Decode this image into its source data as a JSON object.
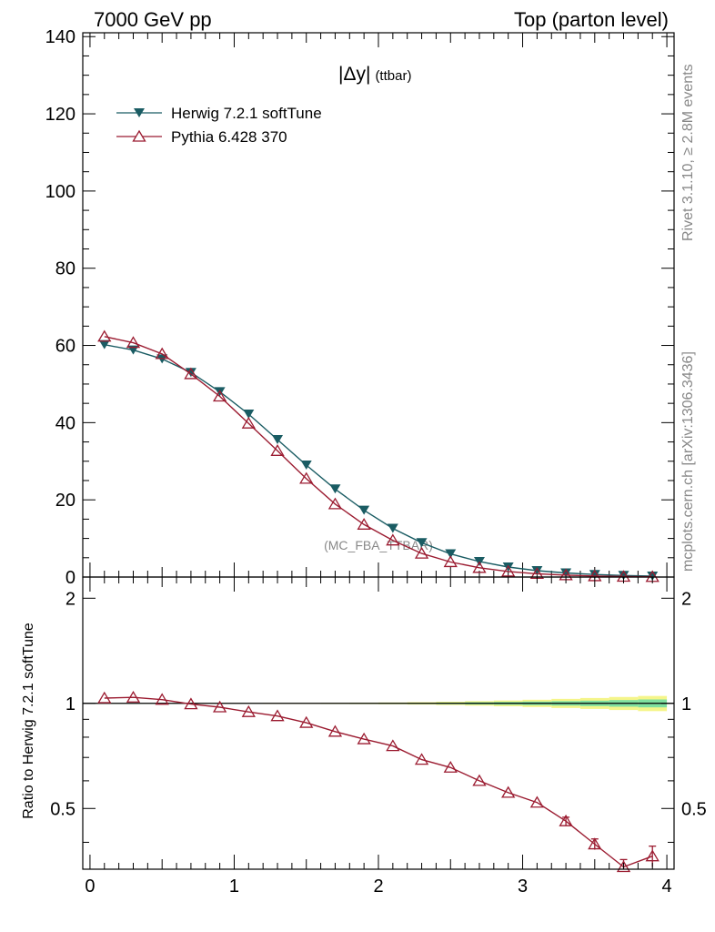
{
  "header": {
    "left": "7000 GeV pp",
    "right": "Top (parton level)"
  },
  "side_labels": {
    "rivet": "Rivet 3.1.10, ≥ 2.8M events",
    "mcplots": "mcplots.cern.ch [arXiv:1306.3436]"
  },
  "chart_data": [
    {
      "type": "line",
      "title": "|Δy| (ttbar)",
      "title_main": "|Δy|",
      "title_sub": "(ttbar)",
      "watermark": "(MC_FBA_TTBAR)",
      "xlabel": "",
      "ylabel": "",
      "xlim": [
        -0.05,
        4.05
      ],
      "ylim": [
        0,
        141
      ],
      "y_ticks": [
        0,
        20,
        40,
        60,
        80,
        100,
        120,
        140
      ],
      "legend_position": "top-left",
      "x": [
        0.1,
        0.3,
        0.5,
        0.7,
        0.9,
        1.1,
        1.3,
        1.5,
        1.7,
        1.9,
        2.1,
        2.3,
        2.5,
        2.7,
        2.9,
        3.1,
        3.3,
        3.5,
        3.7,
        3.9
      ],
      "series": [
        {
          "name": "Herwig 7.2.1 softTune",
          "color": "#1a5c63",
          "marker": "triangle-down-filled",
          "values": [
            60.2,
            58.8,
            56.5,
            53.0,
            48.0,
            42.2,
            35.6,
            29.0,
            22.8,
            17.3,
            12.6,
            8.9,
            6.0,
            4.0,
            2.6,
            1.65,
            1.05,
            0.65,
            0.4,
            0.25
          ]
        },
        {
          "name": "Pythia 6.428 370",
          "color": "#9b1b30",
          "marker": "triangle-up-open",
          "values": [
            62.3,
            60.7,
            57.8,
            52.6,
            46.8,
            39.8,
            32.7,
            25.5,
            18.9,
            13.6,
            9.5,
            6.1,
            3.9,
            2.4,
            1.45,
            0.85,
            0.5,
            0.25,
            0.12,
            0.06
          ]
        }
      ]
    },
    {
      "type": "line",
      "ylabel": "Ratio to Herwig 7.2.1 softTune",
      "ylim": [
        0.335,
        2.3
      ],
      "y_scale": "log",
      "y_ticks": [
        0.5,
        1,
        2
      ],
      "x_ticks": [
        0,
        1,
        2,
        3,
        4
      ],
      "x": [
        0.1,
        0.3,
        0.5,
        0.7,
        0.9,
        1.1,
        1.3,
        1.5,
        1.7,
        1.9,
        2.1,
        2.3,
        2.5,
        2.7,
        2.9,
        3.1,
        3.3,
        3.5,
        3.7,
        3.9
      ],
      "band_yellow_halfwidth": [
        0.001,
        0.001,
        0.001,
        0.002,
        0.002,
        0.002,
        0.003,
        0.003,
        0.004,
        0.005,
        0.006,
        0.008,
        0.011,
        0.015,
        0.019,
        0.024,
        0.03,
        0.036,
        0.043,
        0.05
      ],
      "band_green_halfwidth": [
        0.0005,
        0.0005,
        0.0005,
        0.001,
        0.001,
        0.001,
        0.0015,
        0.0015,
        0.002,
        0.0025,
        0.003,
        0.004,
        0.0055,
        0.0075,
        0.0095,
        0.012,
        0.015,
        0.018,
        0.022,
        0.026
      ],
      "series": [
        {
          "name": "Pythia 6.428 370",
          "color": "#9b1b30",
          "values": [
            1.035,
            1.04,
            1.025,
            0.995,
            0.975,
            0.945,
            0.92,
            0.88,
            0.83,
            0.79,
            0.755,
            0.69,
            0.655,
            0.6,
            0.555,
            0.52,
            0.46,
            0.395,
            0.34,
            0.365
          ],
          "errors": [
            0.002,
            0.002,
            0.002,
            0.002,
            0.002,
            0.002,
            0.003,
            0.003,
            0.003,
            0.004,
            0.005,
            0.006,
            0.007,
            0.008,
            0.009,
            0.01,
            0.012,
            0.014,
            0.017,
            0.025
          ]
        }
      ]
    }
  ]
}
